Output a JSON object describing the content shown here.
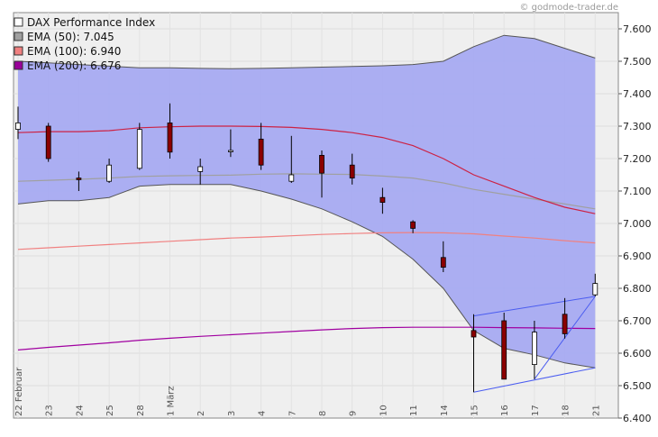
{
  "watermark": "© godmode-trader.de",
  "chart_data": {
    "type": "candlestick",
    "y_axis": {
      "position": "right",
      "min": 6.4,
      "max": 7.65,
      "ticks": [
        6.4,
        6.5,
        6.6,
        6.7,
        6.8,
        6.9,
        7.0,
        7.1,
        7.2,
        7.3,
        7.4,
        7.5,
        7.6
      ],
      "tick_labels": [
        "6.400",
        "6.500",
        "6.600",
        "6.700",
        "6.800",
        "6.900",
        "7.000",
        "7.100",
        "7.200",
        "7.300",
        "7.400",
        "7.500",
        "7.600"
      ]
    },
    "grid": true,
    "legend_placement": "top-left",
    "legend": [
      {
        "label": "DAX Performance Index",
        "color": "#ffffff"
      },
      {
        "label": "EMA (50): 7.045",
        "color": "#a0a0a0"
      },
      {
        "label": "EMA (100): 6.940",
        "color": "#f08080"
      },
      {
        "label": "EMA (200): 6.676",
        "color": "#990099"
      }
    ],
    "x_labels": [
      "22 Februar",
      "23",
      "24",
      "25",
      "28",
      "1 März",
      "2",
      "3",
      "4",
      "7",
      "8",
      "9",
      "10",
      "11",
      "14",
      "15",
      "16",
      "17",
      "18",
      "21"
    ],
    "candles": [
      {
        "open": 7.29,
        "high": 7.36,
        "low": 7.26,
        "close": 7.31
      },
      {
        "open": 7.3,
        "high": 7.31,
        "low": 7.19,
        "close": 7.2
      },
      {
        "open": 7.14,
        "high": 7.16,
        "low": 7.1,
        "close": 7.135
      },
      {
        "open": 7.13,
        "high": 7.2,
        "low": 7.125,
        "close": 7.18
      },
      {
        "open": 7.17,
        "high": 7.31,
        "low": 7.165,
        "close": 7.29
      },
      {
        "open": 7.31,
        "high": 7.37,
        "low": 7.2,
        "close": 7.22
      },
      {
        "open": 7.16,
        "high": 7.2,
        "low": 7.12,
        "close": 7.175
      },
      {
        "open": 7.225,
        "high": 7.29,
        "low": 7.205,
        "close": 7.225
      },
      {
        "open": 7.26,
        "high": 7.31,
        "low": 7.165,
        "close": 7.18
      },
      {
        "open": 7.13,
        "high": 7.27,
        "low": 7.125,
        "close": 7.15
      },
      {
        "open": 7.21,
        "high": 7.225,
        "low": 7.08,
        "close": 7.155
      },
      {
        "open": 7.18,
        "high": 7.215,
        "low": 7.12,
        "close": 7.14
      },
      {
        "open": 7.08,
        "high": 7.11,
        "low": 7.03,
        "close": 7.065
      },
      {
        "open": 7.005,
        "high": 7.01,
        "low": 6.97,
        "close": 6.985
      },
      {
        "open": 6.895,
        "high": 6.945,
        "low": 6.85,
        "close": 6.865
      },
      {
        "open": 6.67,
        "high": 6.72,
        "low": 6.48,
        "close": 6.65
      },
      {
        "open": 6.7,
        "high": 6.725,
        "low": 6.52,
        "close": 6.52
      },
      {
        "open": 6.565,
        "high": 6.7,
        "low": 6.52,
        "close": 6.665
      },
      {
        "open": 6.72,
        "high": 6.77,
        "low": 6.645,
        "close": 6.66
      },
      {
        "open": 6.78,
        "high": 6.845,
        "low": 6.775,
        "close": 6.815
      }
    ],
    "bollinger_band": {
      "upper": [
        7.5,
        7.495,
        7.49,
        7.485,
        7.48,
        7.48,
        7.478,
        7.477,
        7.478,
        7.48,
        7.482,
        7.484,
        7.486,
        7.49,
        7.5,
        7.545,
        7.58,
        7.57,
        7.54,
        7.51
      ],
      "lower": [
        7.06,
        7.07,
        7.07,
        7.08,
        7.115,
        7.12,
        7.12,
        7.12,
        7.1,
        7.075,
        7.045,
        7.005,
        6.96,
        6.89,
        6.8,
        6.67,
        6.615,
        6.595,
        6.57,
        6.555
      ]
    },
    "ema50": [
      7.13,
      7.133,
      7.136,
      7.14,
      7.145,
      7.147,
      7.148,
      7.149,
      7.152,
      7.153,
      7.152,
      7.151,
      7.146,
      7.14,
      7.125,
      7.105,
      7.09,
      7.075,
      7.06,
      7.045
    ],
    "ema100": [
      6.92,
      6.925,
      6.93,
      6.935,
      6.94,
      6.945,
      6.95,
      6.955,
      6.958,
      6.962,
      6.966,
      6.969,
      6.971,
      6.972,
      6.971,
      6.968,
      6.961,
      6.955,
      6.947,
      6.94
    ],
    "ema200": [
      6.61,
      6.618,
      6.625,
      6.632,
      6.64,
      6.646,
      6.652,
      6.657,
      6.662,
      6.667,
      6.672,
      6.676,
      6.679,
      6.68,
      6.68,
      6.68,
      6.679,
      6.678,
      6.677,
      6.676
    ],
    "ema_red": [
      7.28,
      7.283,
      7.283,
      7.286,
      7.295,
      7.298,
      7.3,
      7.3,
      7.299,
      7.296,
      7.29,
      7.28,
      7.265,
      7.24,
      7.2,
      7.15,
      7.115,
      7.08,
      7.05,
      7.03
    ],
    "triangle_lines": [
      {
        "x1": 15,
        "y1": 6.715,
        "x2": 19,
        "y2": 6.775
      },
      {
        "x1": 15,
        "y1": 6.48,
        "x2": 19,
        "y2": 6.555
      },
      {
        "x1": 17,
        "y1": 6.52,
        "x2": 19,
        "y2": 6.775
      }
    ]
  }
}
